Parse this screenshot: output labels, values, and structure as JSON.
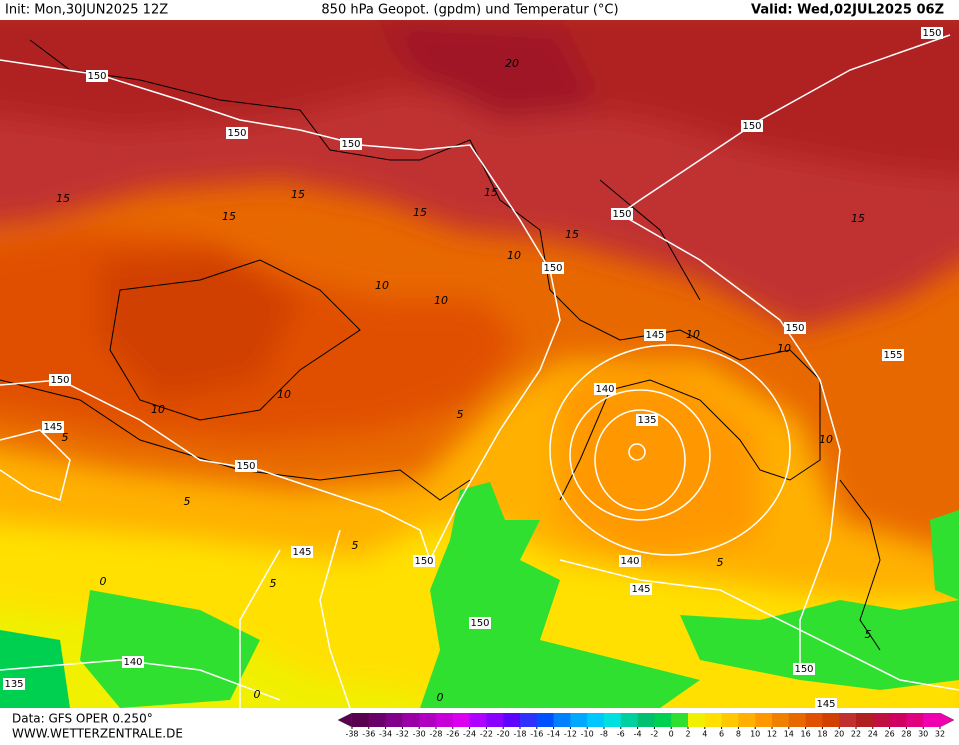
{
  "header": {
    "init": "Init: Mon,30JUN2025 12Z",
    "title": "850 hPa Geopot. (gpdm) und Temperatur (°C)",
    "valid": "Valid: Wed,02JUL2025 06Z"
  },
  "footer": {
    "data": "Data: GFS OPER 0.250°",
    "url": "WWW.WETTERZENTRALE.DE"
  },
  "geopot_labels": [
    150,
    150,
    150,
    150,
    150,
    150,
    150,
    145,
    150,
    155,
    150,
    140,
    135,
    145,
    150,
    145,
    150,
    140,
    145,
    150,
    140,
    150,
    135,
    145
  ],
  "temp_labels": [
    15,
    15,
    15,
    15,
    15,
    15,
    15,
    10,
    10,
    10,
    10,
    10,
    10,
    10,
    10,
    5,
    5,
    5,
    5,
    5,
    5,
    5,
    0,
    0,
    0,
    20
  ],
  "colorbar": {
    "ticks": [
      -38,
      -36,
      -34,
      -32,
      -30,
      -28,
      -26,
      -24,
      -22,
      -20,
      -18,
      -16,
      -14,
      -12,
      -10,
      -8,
      -6,
      -4,
      -2,
      0,
      2,
      4,
      6,
      8,
      10,
      12,
      14,
      16,
      18,
      20,
      22,
      24,
      26,
      28,
      30,
      32
    ],
    "colors": [
      "#5a0050",
      "#6b006b",
      "#80008a",
      "#9a00a6",
      "#b000c0",
      "#c800d8",
      "#dc00f0",
      "#b000ff",
      "#8a00ff",
      "#6000ff",
      "#3030ff",
      "#0050ff",
      "#0080ff",
      "#00a8ff",
      "#00c8ff",
      "#00e0e0",
      "#00d0a0",
      "#00c070",
      "#00d050",
      "#30e030",
      "#f0f000",
      "#ffe000",
      "#ffc800",
      "#ffb000",
      "#ff9800",
      "#f08000",
      "#e86800",
      "#e05000",
      "#d04000",
      "#c03030",
      "#b02020",
      "#c01040",
      "#d00060",
      "#e00080",
      "#f000b0"
    ]
  }
}
